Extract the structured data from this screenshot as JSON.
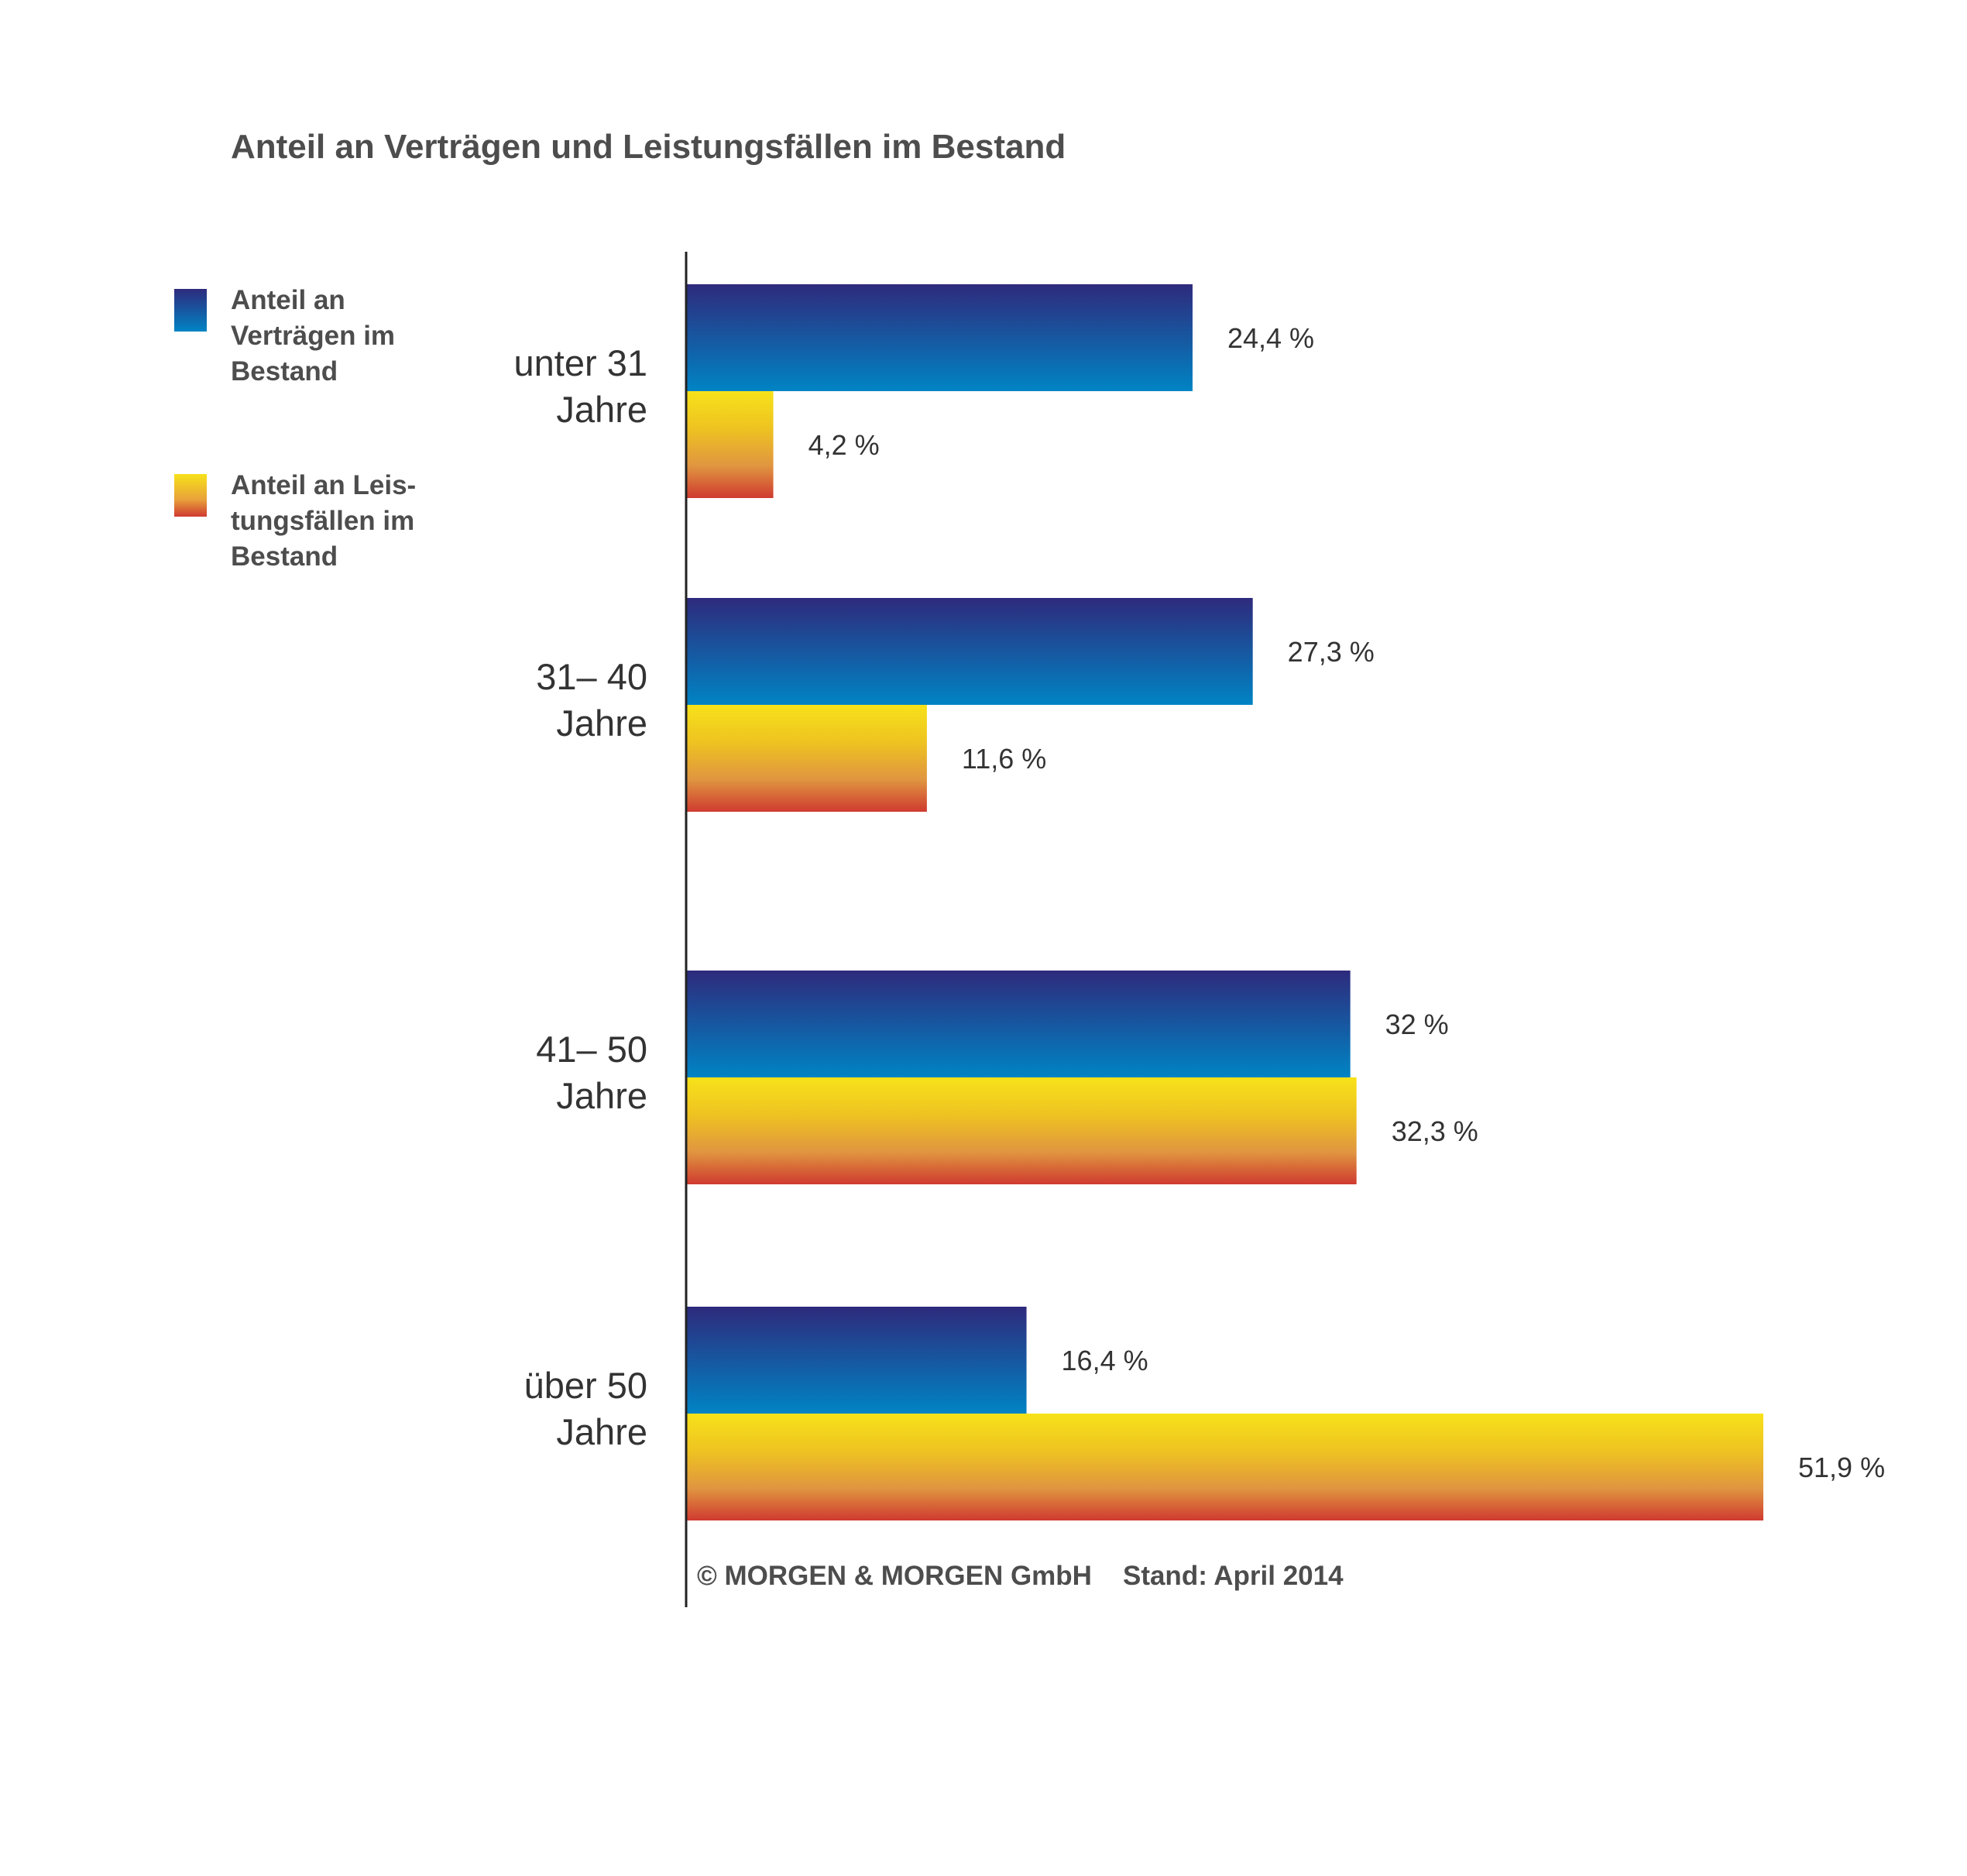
{
  "title": "Anteil an Verträgen und Leistungsfällen im Bestand",
  "legend": [
    {
      "label": "Anteil an Verträgen im Bestand",
      "lines": [
        "Anteil an",
        "Verträgen im",
        "Bestand"
      ]
    },
    {
      "label": "Anteil an Leistungsfällen im Bestand",
      "lines": [
        "Anteil an Leis-",
        "tungsfällen im",
        "Bestand"
      ]
    }
  ],
  "footer": {
    "copyright": "© MORGEN & MORGEN GmbH",
    "date": "Stand: April 2014"
  },
  "colors": {
    "vertraege_top": "#2e2a7c",
    "vertraege_bottom": "#0084c4",
    "leistung_top": "#f7e21a",
    "leistung_mid": "#e9a13a",
    "leistung_bottom": "#cf3a30",
    "axis": "#222222",
    "text": "#4d4d4d"
  },
  "chart_data": {
    "type": "bar",
    "orientation": "horizontal",
    "categories": [
      {
        "lines": [
          "unter 31",
          "Jahre"
        ]
      },
      {
        "lines": [
          "31– 40",
          "Jahre"
        ]
      },
      {
        "lines": [
          "41– 50",
          "Jahre"
        ]
      },
      {
        "lines": [
          "über 50",
          "Jahre"
        ]
      }
    ],
    "series": [
      {
        "name": "Anteil an Verträgen im Bestand",
        "values": [
          24.4,
          27.3,
          32,
          16.4
        ],
        "value_labels": [
          "24,4 %",
          "27,3 %",
          "32 %",
          "16,4 %"
        ]
      },
      {
        "name": "Anteil an Leistungsfällen im Bestand",
        "values": [
          4.2,
          11.6,
          32.3,
          51.9
        ],
        "value_labels": [
          "4,2 %",
          "11,6 %",
          "32,3 %",
          "51,9 %"
        ]
      }
    ],
    "title": "Anteil an Verträgen und Leistungsfällen im Bestand",
    "xlabel": "",
    "ylabel": "",
    "xlim": [
      0,
      51.9
    ],
    "grid": false,
    "legend_position": "left"
  }
}
